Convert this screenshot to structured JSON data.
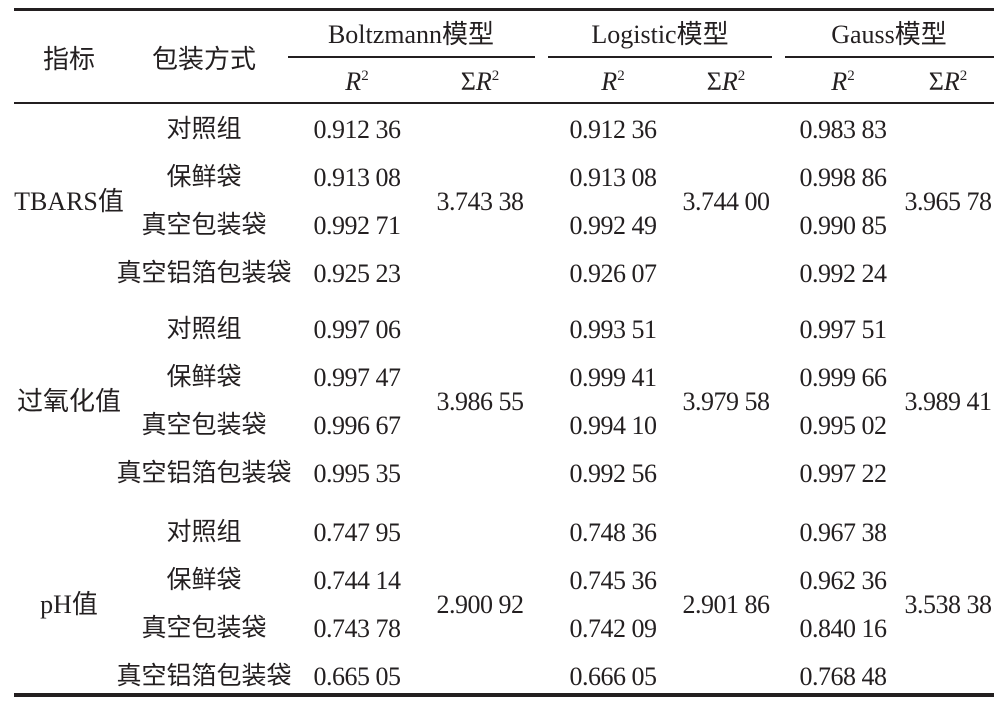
{
  "header": {
    "indicator": "指标",
    "packaging": "包装方式",
    "models": [
      {
        "name": "Boltzmann模型",
        "r2": "R",
        "sigma_r2": "ΣR"
      },
      {
        "name": "Logistic模型",
        "r2": "R",
        "sigma_r2": "ΣR"
      },
      {
        "name": "Gauss模型",
        "r2": "R",
        "sigma_r2": "ΣR"
      }
    ],
    "superscript": "2"
  },
  "groups": [
    {
      "indicator": "TBARS值",
      "rows": [
        {
          "packaging": "对照组",
          "values": [
            "0.912 36",
            "0.912 36",
            "0.983 83"
          ]
        },
        {
          "packaging": "保鲜袋",
          "values": [
            "0.913 08",
            "0.913 08",
            "0.998 86"
          ]
        },
        {
          "packaging": "真空包装袋",
          "values": [
            "0.992 71",
            "0.992 49",
            "0.990 85"
          ]
        },
        {
          "packaging": "真空铝箔包装袋",
          "values": [
            "0.925 23",
            "0.926 07",
            "0.992 24"
          ]
        }
      ],
      "sums": [
        "3.743 38",
        "3.744 00",
        "3.965 78"
      ]
    },
    {
      "indicator": "过氧化值",
      "rows": [
        {
          "packaging": "对照组",
          "values": [
            "0.997 06",
            "0.993 51",
            "0.997 51"
          ]
        },
        {
          "packaging": "保鲜袋",
          "values": [
            "0.997 47",
            "0.999 41",
            "0.999 66"
          ]
        },
        {
          "packaging": "真空包装袋",
          "values": [
            "0.996 67",
            "0.994 10",
            "0.995 02"
          ]
        },
        {
          "packaging": "真空铝箔包装袋",
          "values": [
            "0.995 35",
            "0.992 56",
            "0.997 22"
          ]
        }
      ],
      "sums": [
        "3.986 55",
        "3.979 58",
        "3.989 41"
      ]
    },
    {
      "indicator": "pH值",
      "rows": [
        {
          "packaging": "对照组",
          "values": [
            "0.747 95",
            "0.748 36",
            "0.967 38"
          ]
        },
        {
          "packaging": "保鲜袋",
          "values": [
            "0.744 14",
            "0.745 36",
            "0.962 36"
          ]
        },
        {
          "packaging": "真空包装袋",
          "values": [
            "0.743 78",
            "0.742 09",
            "0.840 16"
          ]
        },
        {
          "packaging": "真空铝箔包装袋",
          "values": [
            "0.665 05",
            "0.666 05",
            "0.768 48"
          ]
        }
      ],
      "sums": [
        "2.900 92",
        "2.901 86",
        "3.538 38"
      ]
    }
  ]
}
